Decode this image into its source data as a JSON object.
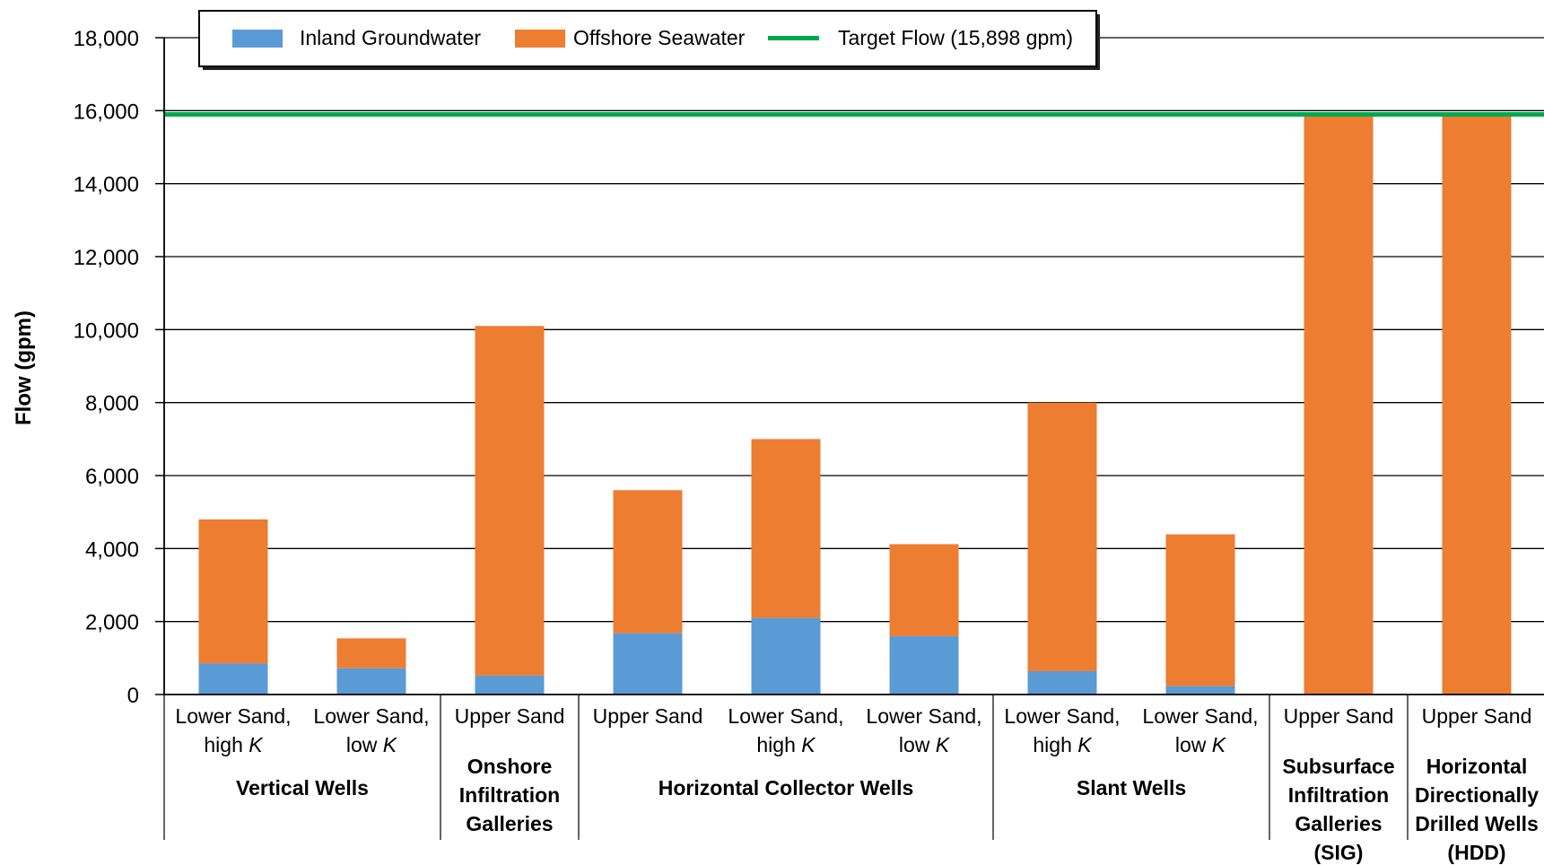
{
  "chart_data": {
    "type": "bar",
    "stacked": true,
    "ylabel": "Flow (gpm)",
    "ylim": [
      0,
      18000
    ],
    "yticks": [
      0,
      2000,
      4000,
      6000,
      8000,
      10000,
      12000,
      14000,
      16000,
      18000
    ],
    "ytick_labels": [
      "0",
      "2,000",
      "4,000",
      "6,000",
      "8,000",
      "10,000",
      "12,000",
      "14,000",
      "16,000",
      "18,000"
    ],
    "grid": true,
    "legend_position": "top",
    "categories": [
      {
        "line1": "Lower Sand,",
        "line2": "high ",
        "italic": "K",
        "group": 0
      },
      {
        "line1": "Lower Sand,",
        "line2": "low ",
        "italic": "K",
        "group": 0
      },
      {
        "line1": "Upper Sand",
        "line2": "",
        "italic": "",
        "group": 1
      },
      {
        "line1": "Upper Sand",
        "line2": "",
        "italic": "",
        "group": 2
      },
      {
        "line1": "Lower Sand,",
        "line2": "high ",
        "italic": "K",
        "group": 2
      },
      {
        "line1": "Lower Sand,",
        "line2": "low ",
        "italic": "K",
        "group": 2
      },
      {
        "line1": "Lower Sand,",
        "line2": "high ",
        "italic": "K",
        "group": 3
      },
      {
        "line1": "Lower Sand,",
        "line2": "low ",
        "italic": "K",
        "group": 3
      },
      {
        "line1": "Upper Sand",
        "line2": "",
        "italic": "",
        "group": 4
      },
      {
        "line1": "Upper Sand",
        "line2": "",
        "italic": "",
        "group": 5
      }
    ],
    "groups": [
      {
        "label_lines": [
          "Vertical Wells"
        ]
      },
      {
        "label_lines": [
          "Onshore",
          "Infiltration",
          "Galleries"
        ]
      },
      {
        "label_lines": [
          "Horizontal Collector Wells"
        ]
      },
      {
        "label_lines": [
          "Slant Wells"
        ]
      },
      {
        "label_lines": [
          "Subsurface",
          "Infiltration",
          "Galleries",
          "(SIG)"
        ]
      },
      {
        "label_lines": [
          "Horizontal",
          "Directionally",
          "Drilled Wells",
          "(HDD)"
        ]
      }
    ],
    "series": [
      {
        "name": "Inland Groundwater",
        "color": "#5b9bd5",
        "values": [
          850,
          720,
          520,
          1680,
          2100,
          1600,
          640,
          230,
          0,
          0
        ]
      },
      {
        "name": "Offshore Seawater",
        "color": "#ed7d31",
        "values": [
          3950,
          820,
          9580,
          3920,
          4900,
          2520,
          7360,
          4160,
          15898,
          15898
        ]
      }
    ],
    "reference_line": {
      "name": "Target Flow (15,898 gpm)",
      "value": 15898,
      "color": "#00a94f"
    }
  }
}
